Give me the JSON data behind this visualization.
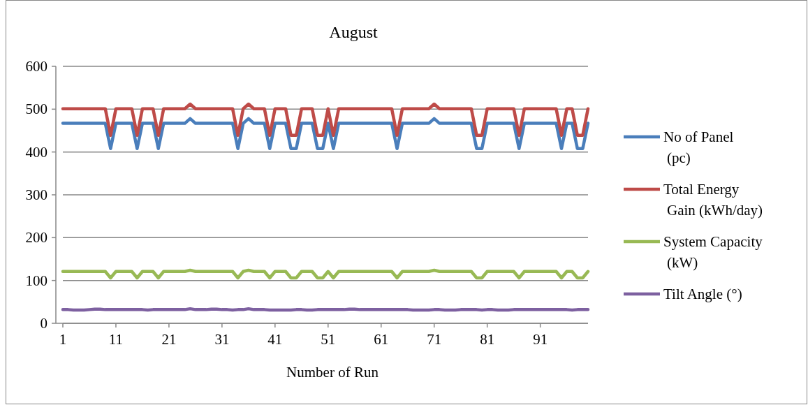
{
  "chart_data": {
    "type": "line",
    "title": "August",
    "xlabel": "Number of Run",
    "x": [
      1,
      2,
      3,
      4,
      5,
      6,
      7,
      8,
      9,
      10,
      11,
      12,
      13,
      14,
      15,
      16,
      17,
      18,
      19,
      20,
      21,
      22,
      23,
      24,
      25,
      26,
      27,
      28,
      29,
      30,
      31,
      32,
      33,
      34,
      35,
      36,
      37,
      38,
      39,
      40,
      41,
      42,
      43,
      44,
      45,
      46,
      47,
      48,
      49,
      50,
      51,
      52,
      53,
      54,
      55,
      56,
      57,
      58,
      59,
      60,
      61,
      62,
      63,
      64,
      65,
      66,
      67,
      68,
      69,
      70,
      71,
      72,
      73,
      74,
      75,
      76,
      77,
      78,
      79,
      80,
      81,
      82,
      83,
      84,
      85,
      86,
      87,
      88,
      89,
      90,
      91,
      92,
      93,
      94,
      95,
      96,
      97,
      98,
      99,
      100
    ],
    "xlim": [
      1,
      100
    ],
    "xticks": [
      1,
      11,
      21,
      31,
      41,
      51,
      61,
      71,
      81,
      91
    ],
    "ylim": [
      0,
      600
    ],
    "yticks": [
      0,
      100,
      200,
      300,
      400,
      500,
      600
    ],
    "grid": "y",
    "legend": "right",
    "marker": "none",
    "line_style": "solid",
    "series": [
      {
        "name": "No of Panel (pc)",
        "color": "#4a7ebb",
        "values": [
          467,
          467,
          467,
          467,
          467,
          467,
          467,
          467,
          467,
          408,
          467,
          467,
          467,
          467,
          408,
          467,
          467,
          467,
          408,
          467,
          467,
          467,
          467,
          467,
          478,
          467,
          467,
          467,
          467,
          467,
          467,
          467,
          467,
          408,
          467,
          478,
          467,
          467,
          467,
          408,
          467,
          467,
          467,
          408,
          408,
          467,
          467,
          467,
          408,
          408,
          467,
          408,
          467,
          467,
          467,
          467,
          467,
          467,
          467,
          467,
          467,
          467,
          467,
          408,
          467,
          467,
          467,
          467,
          467,
          467,
          478,
          467,
          467,
          467,
          467,
          467,
          467,
          467,
          408,
          408,
          467,
          467,
          467,
          467,
          467,
          467,
          408,
          467,
          467,
          467,
          467,
          467,
          467,
          467,
          408,
          467,
          467,
          408,
          408,
          467
        ]
      },
      {
        "name": "Total Energy Gain (kWh/day)",
        "color": "#be4b48",
        "values": [
          501,
          501,
          501,
          501,
          501,
          501,
          501,
          501,
          501,
          439,
          501,
          501,
          501,
          501,
          439,
          501,
          501,
          501,
          439,
          501,
          501,
          501,
          501,
          501,
          512,
          501,
          501,
          501,
          501,
          501,
          501,
          501,
          501,
          439,
          501,
          512,
          501,
          501,
          501,
          439,
          501,
          501,
          501,
          439,
          439,
          501,
          501,
          501,
          439,
          439,
          501,
          439,
          501,
          501,
          501,
          501,
          501,
          501,
          501,
          501,
          501,
          501,
          501,
          439,
          501,
          501,
          501,
          501,
          501,
          501,
          512,
          501,
          501,
          501,
          501,
          501,
          501,
          501,
          439,
          439,
          501,
          501,
          501,
          501,
          501,
          501,
          439,
          501,
          501,
          501,
          501,
          501,
          501,
          501,
          439,
          501,
          501,
          439,
          439,
          501
        ]
      },
      {
        "name": "System Capacity (kW)",
        "color": "#98b954",
        "values": [
          121,
          121,
          121,
          121,
          121,
          121,
          121,
          121,
          121,
          106,
          121,
          121,
          121,
          121,
          106,
          121,
          121,
          121,
          106,
          121,
          121,
          121,
          121,
          121,
          124,
          121,
          121,
          121,
          121,
          121,
          121,
          121,
          121,
          106,
          121,
          124,
          121,
          121,
          121,
          106,
          121,
          121,
          121,
          106,
          106,
          121,
          121,
          121,
          106,
          106,
          121,
          106,
          121,
          121,
          121,
          121,
          121,
          121,
          121,
          121,
          121,
          121,
          121,
          106,
          121,
          121,
          121,
          121,
          121,
          121,
          124,
          121,
          121,
          121,
          121,
          121,
          121,
          121,
          106,
          106,
          121,
          121,
          121,
          121,
          121,
          121,
          106,
          121,
          121,
          121,
          121,
          121,
          121,
          121,
          106,
          121,
          121,
          106,
          106,
          121
        ]
      },
      {
        "name": "Tilt Angle (°)",
        "color": "#7d60a0",
        "values": [
          32,
          32,
          31,
          31,
          31,
          32,
          33,
          33,
          32,
          32,
          32,
          32,
          32,
          32,
          32,
          32,
          31,
          32,
          32,
          32,
          32,
          32,
          32,
          32,
          34,
          32,
          32,
          32,
          33,
          33,
          32,
          32,
          31,
          32,
          32,
          34,
          32,
          32,
          32,
          31,
          31,
          31,
          31,
          31,
          32,
          32,
          31,
          31,
          32,
          32,
          32,
          32,
          32,
          32,
          33,
          33,
          32,
          32,
          32,
          32,
          32,
          32,
          32,
          32,
          32,
          32,
          31,
          31,
          31,
          31,
          32,
          32,
          31,
          31,
          31,
          32,
          32,
          32,
          32,
          31,
          32,
          32,
          31,
          31,
          31,
          32,
          32,
          32,
          32,
          32,
          32,
          32,
          32,
          32,
          32,
          32,
          31,
          32,
          32,
          32
        ]
      }
    ]
  }
}
